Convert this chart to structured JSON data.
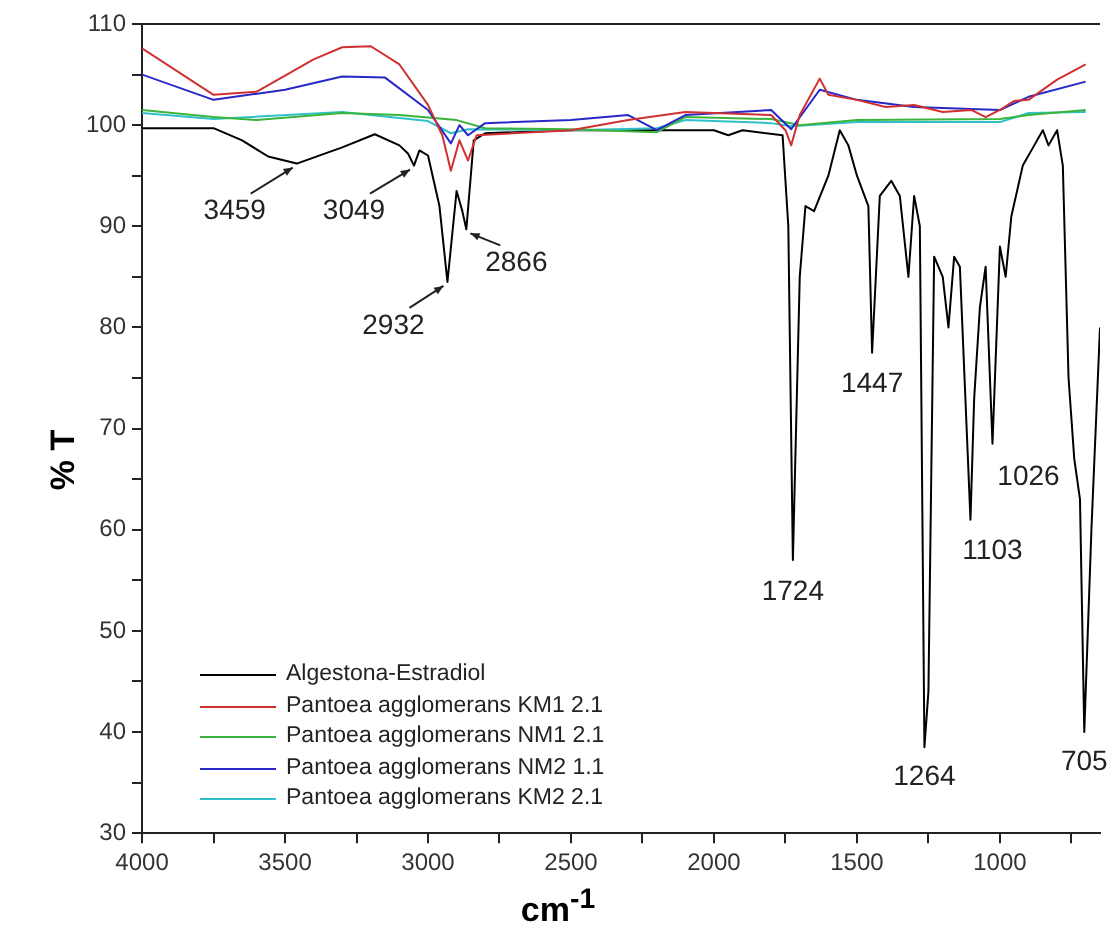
{
  "chart_data": {
    "type": "line",
    "xlabel": "cm$^{-1}$",
    "ylabel": "% T",
    "xlim": [
      4000,
      650
    ],
    "ylim": [
      30,
      110
    ],
    "xticks": [
      4000,
      {
        "value": 3750,
        "label": null
      },
      3500,
      {
        "value": 3250,
        "label": null
      },
      3000,
      {
        "value": 2750,
        "label": null
      },
      2500,
      {
        "value": 2250,
        "label": null
      },
      2000,
      {
        "value": 1750,
        "label": null
      },
      1500,
      {
        "value": 1250,
        "label": null
      },
      1000,
      {
        "value": 750,
        "label": null
      }
    ],
    "yticks": [
      30,
      {
        "value": 35,
        "label": null
      },
      40,
      {
        "value": 45,
        "label": null
      },
      50,
      {
        "value": 55,
        "label": null
      },
      60,
      {
        "value": 65,
        "label": null
      },
      70,
      {
        "value": 75,
        "label": null
      },
      80,
      {
        "value": 85,
        "label": null
      },
      90,
      {
        "value": 95,
        "label": null
      },
      100,
      {
        "value": 105,
        "label": null
      },
      110
    ],
    "grid": false,
    "legend": "bottom left",
    "marker": "none",
    "line_style": "solid",
    "series": [
      {
        "name": "Pantoea agglomerans KM1 2.1",
        "color": "#d03030",
        "x": [
          4000,
          3750,
          3600,
          3400,
          3300,
          3200,
          3100,
          3000,
          2950,
          2920,
          2890,
          2860,
          2830,
          2500,
          2300,
          2100,
          1800,
          1750,
          1730,
          1700,
          1630,
          1600,
          1500,
          1400,
          1300,
          1200,
          1100,
          1050,
          1000,
          950,
          900,
          800,
          700
        ],
        "values": [
          107.6,
          103,
          103.3,
          106.5,
          107.7,
          107.8,
          106,
          102,
          99,
          95.5,
          98.5,
          96.5,
          99,
          99.5,
          100.5,
          101.3,
          101,
          99.5,
          98,
          101,
          104.6,
          103,
          102.5,
          101.8,
          102,
          101.3,
          101.5,
          100.8,
          101.5,
          102.4,
          102.5,
          104.5,
          106
        ]
      },
      {
        "name": "Pantoea agglomerans NM2 1.1",
        "color": "#2828c8",
        "x": [
          4000,
          3750,
          3500,
          3300,
          3150,
          3000,
          2920,
          2890,
          2860,
          2800,
          2500,
          2300,
          2200,
          2100,
          1800,
          1730,
          1630,
          1500,
          1300,
          1100,
          1000,
          900,
          700
        ],
        "values": [
          105,
          102.5,
          103.5,
          104.8,
          104.7,
          101.5,
          98.2,
          100,
          99,
          100.2,
          100.5,
          101,
          99.5,
          101,
          101.5,
          99.6,
          103.5,
          102.5,
          101.8,
          101.6,
          101.5,
          102.8,
          104.3
        ]
      },
      {
        "name": "Pantoea agglomerans NM1 2.1",
        "color": "#3cb43c",
        "x": [
          4000,
          3750,
          3600,
          3300,
          3100,
          2900,
          2800,
          2500,
          2200,
          2100,
          1800,
          1700,
          1500,
          1000,
          900,
          700
        ],
        "values": [
          101.5,
          100.8,
          100.5,
          101.2,
          101,
          100.5,
          99.7,
          99.6,
          99.3,
          100.8,
          100.6,
          100,
          100.5,
          100.6,
          101,
          101.5
        ]
      },
      {
        "name": "Pantoea agglomerans KM2 2.1",
        "color": "#30c0c8",
        "x": [
          4000,
          3750,
          3300,
          3000,
          2920,
          2860,
          2500,
          2200,
          2100,
          1800,
          1730,
          1500,
          1000,
          900,
          700
        ],
        "values": [
          101.2,
          100.6,
          101.3,
          100.4,
          99.2,
          99.6,
          99.5,
          99.7,
          100.5,
          100.2,
          99.9,
          100.3,
          100.3,
          101.2,
          101.3
        ]
      },
      {
        "name": "Algestona-Estradiol",
        "color": "#000000",
        "x": [
          4000,
          3750,
          3650,
          3559,
          3459,
          3300,
          3186,
          3100,
          3070,
          3049,
          3030,
          3000,
          2960,
          2932,
          2900,
          2880,
          2866,
          2840,
          2800,
          2500,
          2000,
          1950,
          1900,
          1760,
          1740,
          1724,
          1700,
          1680,
          1650,
          1600,
          1560,
          1530,
          1500,
          1460,
          1447,
          1420,
          1380,
          1350,
          1320,
          1300,
          1280,
          1264,
          1250,
          1230,
          1200,
          1180,
          1160,
          1140,
          1103,
          1090,
          1070,
          1050,
          1026,
          1000,
          980,
          960,
          920,
          880,
          850,
          830,
          800,
          780,
          760,
          740,
          720,
          705,
          680,
          650
        ],
        "values": [
          99.7,
          99.7,
          98.5,
          96.9,
          96.2,
          97.8,
          99.1,
          98,
          97.2,
          96,
          97.5,
          97,
          92,
          84.5,
          93.5,
          91.5,
          89.7,
          98.5,
          99.2,
          99.5,
          99.5,
          99,
          99.5,
          99,
          90,
          57,
          85,
          92,
          91.5,
          95,
          99.5,
          98,
          95,
          92,
          77.5,
          93,
          94.5,
          93,
          85,
          93,
          90,
          38.5,
          44,
          87,
          85,
          80,
          87,
          86,
          61,
          73,
          82,
          86,
          68.5,
          88,
          85,
          91,
          96,
          98,
          99.5,
          98,
          99.5,
          96,
          75,
          67,
          63,
          40,
          60,
          80
        ]
      }
    ],
    "annotations": [
      {
        "text": "3459",
        "x": 3459,
        "y": 96.2
      },
      {
        "text": "3049",
        "x": 3049,
        "y": 96
      },
      {
        "text": "2932",
        "x": 2932,
        "y": 84.5
      },
      {
        "text": "2866",
        "x": 2866,
        "y": 89.7
      },
      {
        "text": "1724",
        "x": 1724,
        "y": 57
      },
      {
        "text": "1447",
        "x": 1447,
        "y": 77.5
      },
      {
        "text": "1264",
        "x": 1264,
        "y": 38.5
      },
      {
        "text": "1103",
        "x": 1103,
        "y": 61
      },
      {
        "text": "1026",
        "x": 1026,
        "y": 68.5
      },
      {
        "text": "705",
        "x": 705,
        "y": 40
      }
    ]
  }
}
